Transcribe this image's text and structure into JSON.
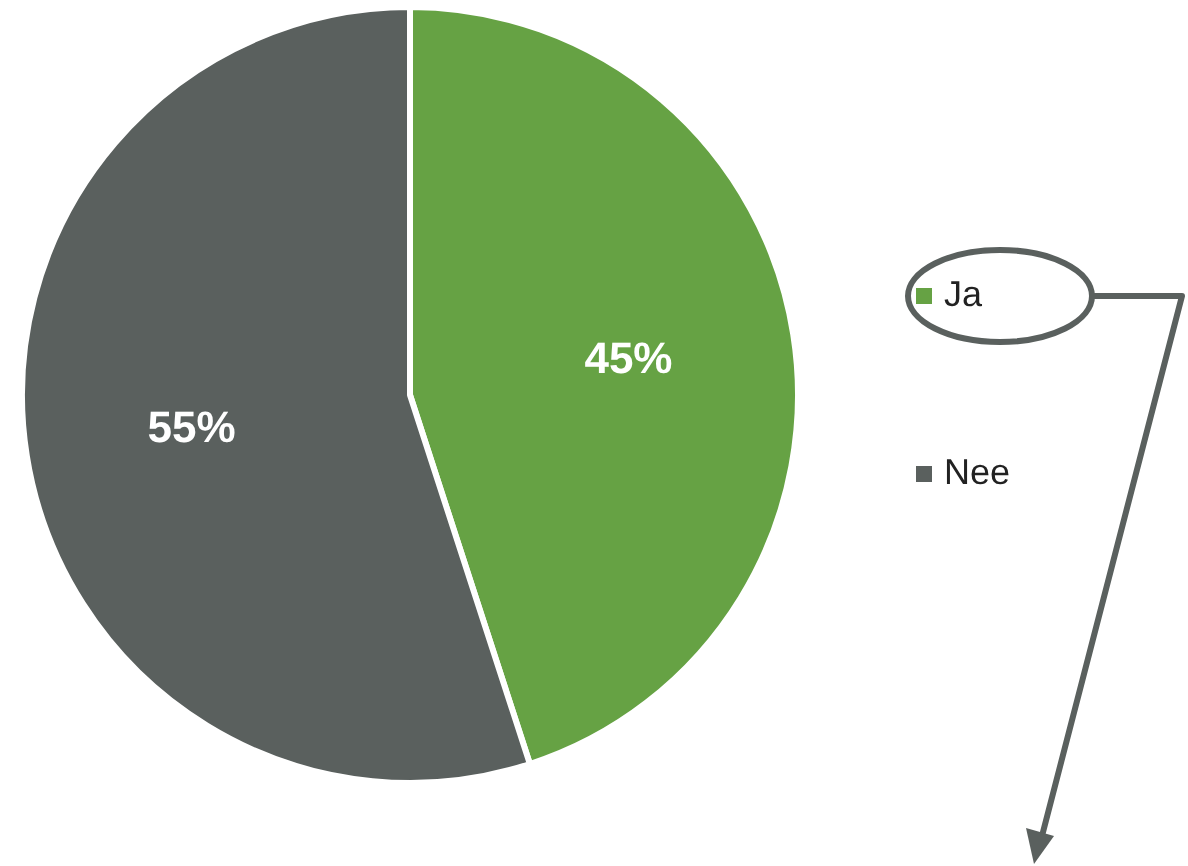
{
  "chart_data": {
    "type": "pie",
    "categories": [
      "Ja",
      "Nee"
    ],
    "values": [
      45,
      55
    ],
    "colors": [
      "#66a244",
      "#5a605e"
    ],
    "value_labels": [
      "45%",
      "55%"
    ],
    "legend": "right"
  }
}
